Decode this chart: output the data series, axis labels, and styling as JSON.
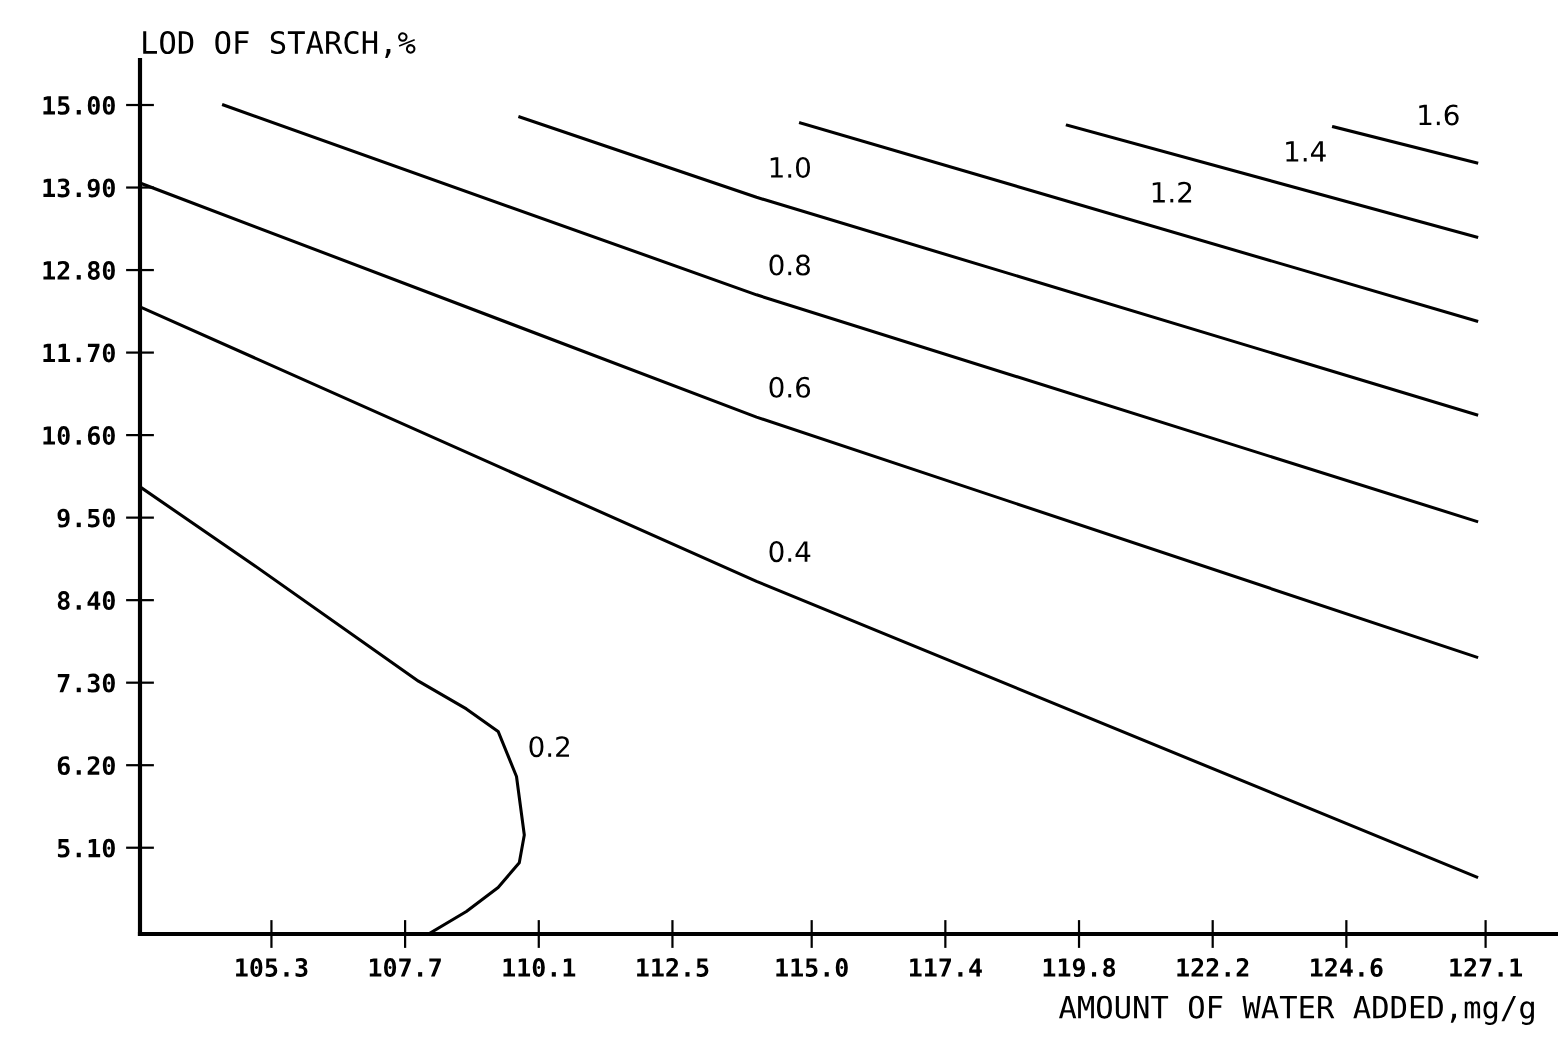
{
  "chart_data": {
    "type": "line",
    "xlabel": "AMOUNT OF WATER ADDED,mg/g",
    "ylabel": "LOD OF STARCH,%",
    "xlim": [
      102.94,
      128.4
    ],
    "ylim": [
      3.95,
      15.6
    ],
    "xticks": [
      105.3,
      107.7,
      110.1,
      112.5,
      {
        "value": 115.0,
        "label": "115.0"
      },
      117.4,
      119.8,
      122.2,
      124.6,
      127.1
    ],
    "yticks": [
      {
        "value": 5.1,
        "label": "5.10"
      },
      {
        "value": 6.2,
        "label": "6.20"
      },
      {
        "value": 7.3,
        "label": "7.30"
      },
      {
        "value": 8.4,
        "label": "8.40"
      },
      {
        "value": 9.5,
        "label": "9.50"
      },
      {
        "value": 10.6,
        "label": "10.60"
      },
      {
        "value": 11.7,
        "label": "11.70"
      },
      {
        "value": 12.8,
        "label": "12.80"
      },
      {
        "value": 13.9,
        "label": "13.90"
      },
      {
        "value": 15.0,
        "label": "15.00"
      }
    ],
    "grid": false,
    "marker": "none",
    "line_style": "solid",
    "series": [
      {
        "name": "0.2",
        "color": "#000000",
        "x": [
          102.94,
          104.98,
          107.94,
          108.8,
          109.37,
          109.7,
          109.84,
          109.75,
          109.37,
          108.8,
          108.12
        ],
        "values": [
          9.91,
          8.87,
          7.32,
          6.95,
          6.65,
          6.05,
          5.27,
          4.9,
          4.57,
          4.25,
          3.95
        ]
      },
      {
        "name": "0.4",
        "color": "#000000",
        "x": [
          102.94,
          114.01,
          126.94
        ],
        "values": [
          12.31,
          8.65,
          4.71
        ]
      },
      {
        "name": "0.6",
        "color": "#000000",
        "x": [
          102.94,
          114.01,
          126.94
        ],
        "values": [
          13.96,
          10.84,
          7.64
        ]
      },
      {
        "name": "0.8",
        "color": "#000000",
        "x": [
          104.44,
          114.01,
          126.94
        ],
        "values": [
          15.0,
          12.47,
          9.45
        ]
      },
      {
        "name": "1.0",
        "color": "#000000",
        "x": [
          109.76,
          114.01,
          126.94
        ],
        "values": [
          14.84,
          13.77,
          10.87
        ]
      },
      {
        "name": "1.2",
        "color": "#000000",
        "x": [
          114.8,
          126.94
        ],
        "values": [
          14.76,
          12.12
        ]
      },
      {
        "name": "1.4",
        "color": "#000000",
        "x": [
          119.59,
          126.94
        ],
        "values": [
          14.73,
          13.24
        ]
      },
      {
        "name": "1.6",
        "color": "#000000",
        "x": [
          124.37,
          126.94
        ],
        "values": [
          14.71,
          14.23
        ]
      }
    ]
  }
}
